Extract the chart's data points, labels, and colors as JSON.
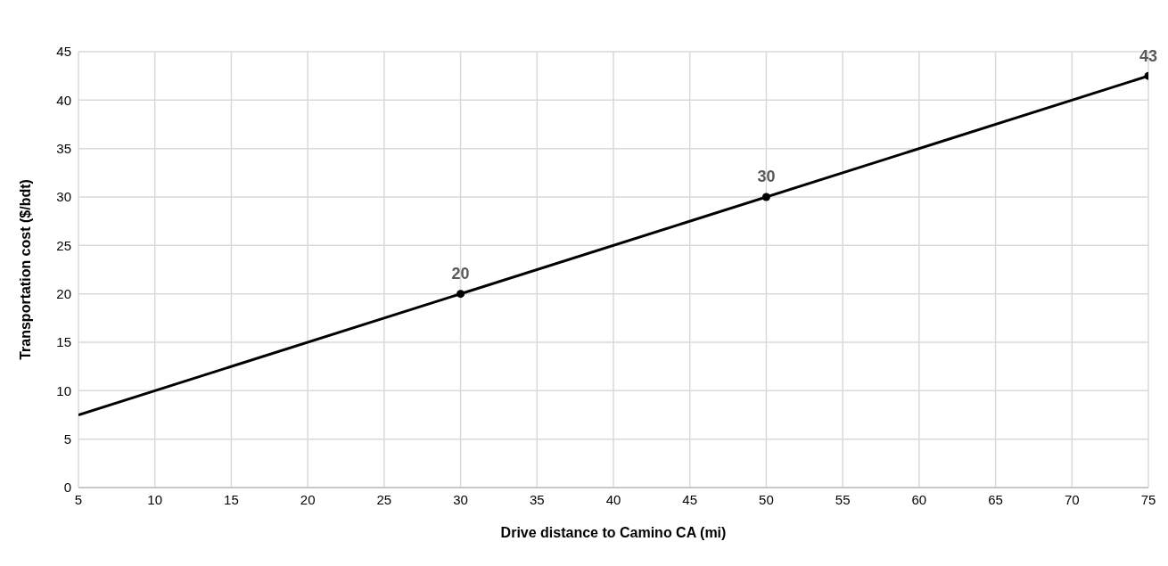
{
  "chart_data": {
    "type": "scatter",
    "xlabel": "Drive distance to Camino CA (mi)",
    "ylabel": "Transportation cost ($/bdt)",
    "xlim": [
      5,
      75
    ],
    "xticks": [
      5,
      10,
      15,
      20,
      25,
      30,
      35,
      40,
      45,
      50,
      55,
      60,
      65,
      70,
      75
    ],
    "ylim": [
      0,
      45
    ],
    "yticks": [
      0,
      5,
      10,
      15,
      20,
      25,
      30,
      35,
      40,
      45
    ],
    "grid": true,
    "marker": "circle",
    "series": [
      {
        "type": "line",
        "marker": "none",
        "x": [
          5,
          75
        ],
        "values": [
          7.5,
          42.5
        ],
        "color": "#000000"
      },
      {
        "x": [
          30,
          50,
          75
        ],
        "values": [
          20,
          30,
          42.5
        ],
        "value_labels": [
          "20",
          "30",
          "43"
        ],
        "color": "#000000"
      }
    ]
  }
}
